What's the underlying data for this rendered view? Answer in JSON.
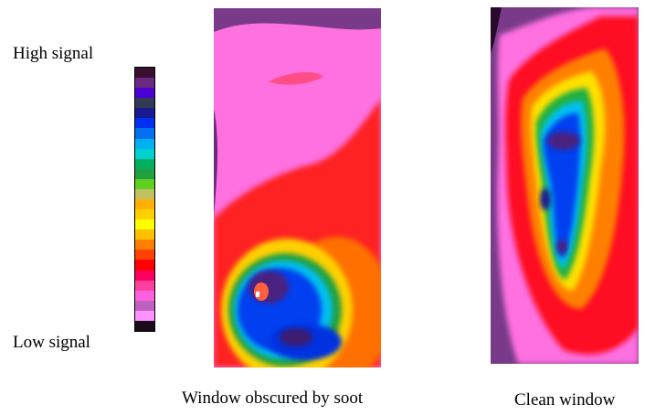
{
  "legend": {
    "high_label": "High signal",
    "low_label": "Low signal",
    "colors": [
      "#3a1030",
      "#6a2a80",
      "#4a00d0",
      "#333a55",
      "#1a1a90",
      "#0030f0",
      "#0070f0",
      "#00b0f0",
      "#00d0d0",
      "#00b060",
      "#20a040",
      "#60d020",
      "#c0c060",
      "#ffb000",
      "#ffd000",
      "#ffff00",
      "#ffc000",
      "#ff8000",
      "#ff4000",
      "#ff0000",
      "#ff0060",
      "#ff40a0",
      "#ff60e0",
      "#c060c0",
      "#ff90ff",
      "#1a0a1a"
    ]
  },
  "panels": {
    "soot": {
      "caption": "Window obscured by soot"
    },
    "clean": {
      "caption": "Clean window"
    }
  }
}
